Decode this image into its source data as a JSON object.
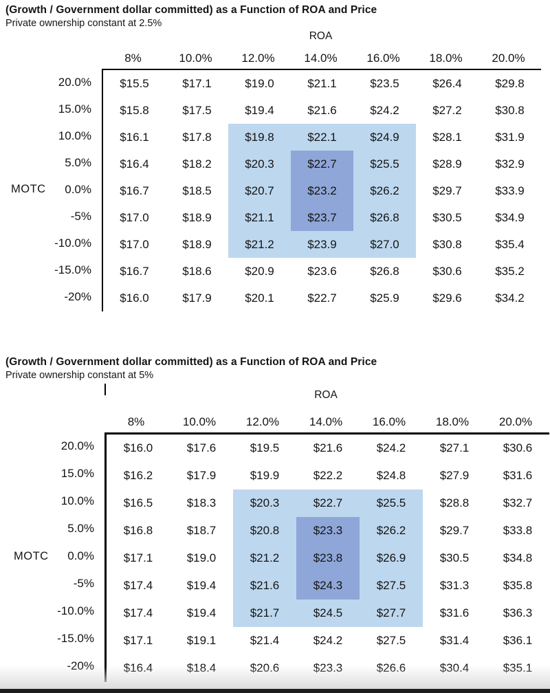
{
  "chart_data": [
    {
      "type": "table",
      "title": "(Growth / Government dollar committed) as a Function of ROA and Price",
      "subtitle": "Private ownership constant at 2.5%",
      "unit": "$",
      "x_axis": {
        "label": "ROA",
        "categories": [
          "8%",
          "10.0%",
          "12.0%",
          "14.0%",
          "16.0%",
          "18.0%",
          "20.0%"
        ]
      },
      "y_axis": {
        "label": "MOTC",
        "categories": [
          "20.0%",
          "15.0%",
          "10.0%",
          "5.0%",
          "0.0%",
          "-5%",
          "-10.0%",
          "-15.0%",
          "-20%"
        ]
      },
      "values": [
        [
          15.5,
          17.1,
          19.0,
          21.1,
          23.5,
          26.4,
          29.8
        ],
        [
          15.8,
          17.5,
          19.4,
          21.6,
          24.2,
          27.2,
          30.8
        ],
        [
          16.1,
          17.8,
          19.8,
          22.1,
          24.9,
          28.1,
          31.9
        ],
        [
          16.4,
          18.2,
          20.3,
          22.7,
          25.5,
          28.9,
          32.9
        ],
        [
          16.7,
          18.5,
          20.7,
          23.2,
          26.2,
          29.7,
          33.9
        ],
        [
          17.0,
          18.9,
          21.1,
          23.7,
          26.8,
          30.5,
          34.9
        ],
        [
          17.0,
          18.9,
          21.2,
          23.9,
          27.0,
          30.8,
          35.4
        ],
        [
          16.7,
          18.6,
          20.9,
          23.6,
          26.8,
          30.6,
          35.2
        ],
        [
          16.0,
          17.9,
          20.1,
          22.7,
          25.9,
          29.6,
          34.2
        ]
      ],
      "highlights": {
        "light": {
          "row_start": 2,
          "row_end": 6,
          "col_start": 2,
          "col_end": 4,
          "color": "#bdd7ee"
        },
        "dark": {
          "row_start": 3,
          "row_end": 5,
          "col_start": 3,
          "col_end": 3,
          "color": "#8fa6d8"
        }
      }
    },
    {
      "type": "table",
      "title": "(Growth / Government dollar committed) as a Function of ROA and Price",
      "subtitle": "Private ownership constant at 5%",
      "unit": "$",
      "x_axis": {
        "label": "ROA",
        "categories": [
          "8%",
          "10.0%",
          "12.0%",
          "14.0%",
          "16.0%",
          "18.0%",
          "20.0%"
        ]
      },
      "y_axis": {
        "label": "MOTC",
        "categories": [
          "20.0%",
          "15.0%",
          "10.0%",
          "5.0%",
          "0.0%",
          "-5%",
          "-10.0%",
          "-15.0%",
          "-20%"
        ]
      },
      "values": [
        [
          16.0,
          17.6,
          19.5,
          21.6,
          24.2,
          27.1,
          30.6
        ],
        [
          16.2,
          17.9,
          19.9,
          22.2,
          24.8,
          27.9,
          31.6
        ],
        [
          16.5,
          18.3,
          20.3,
          22.7,
          25.5,
          28.8,
          32.7
        ],
        [
          16.8,
          18.7,
          20.8,
          23.3,
          26.2,
          29.7,
          33.8
        ],
        [
          17.1,
          19.0,
          21.2,
          23.8,
          26.9,
          30.5,
          34.8
        ],
        [
          17.4,
          19.4,
          21.6,
          24.3,
          27.5,
          31.3,
          35.8
        ],
        [
          17.4,
          19.4,
          21.7,
          24.5,
          27.7,
          31.6,
          36.3
        ],
        [
          17.1,
          19.1,
          21.4,
          24.2,
          27.5,
          31.4,
          36.1
        ],
        [
          16.4,
          18.4,
          20.6,
          23.3,
          26.6,
          30.4,
          35.1
        ]
      ],
      "highlights": {
        "light": {
          "row_start": 2,
          "row_end": 6,
          "col_start": 2,
          "col_end": 4,
          "color": "#bdd7ee"
        },
        "dark": {
          "row_start": 3,
          "row_end": 5,
          "col_start": 3,
          "col_end": 3,
          "color": "#8fa6d8"
        }
      }
    }
  ]
}
